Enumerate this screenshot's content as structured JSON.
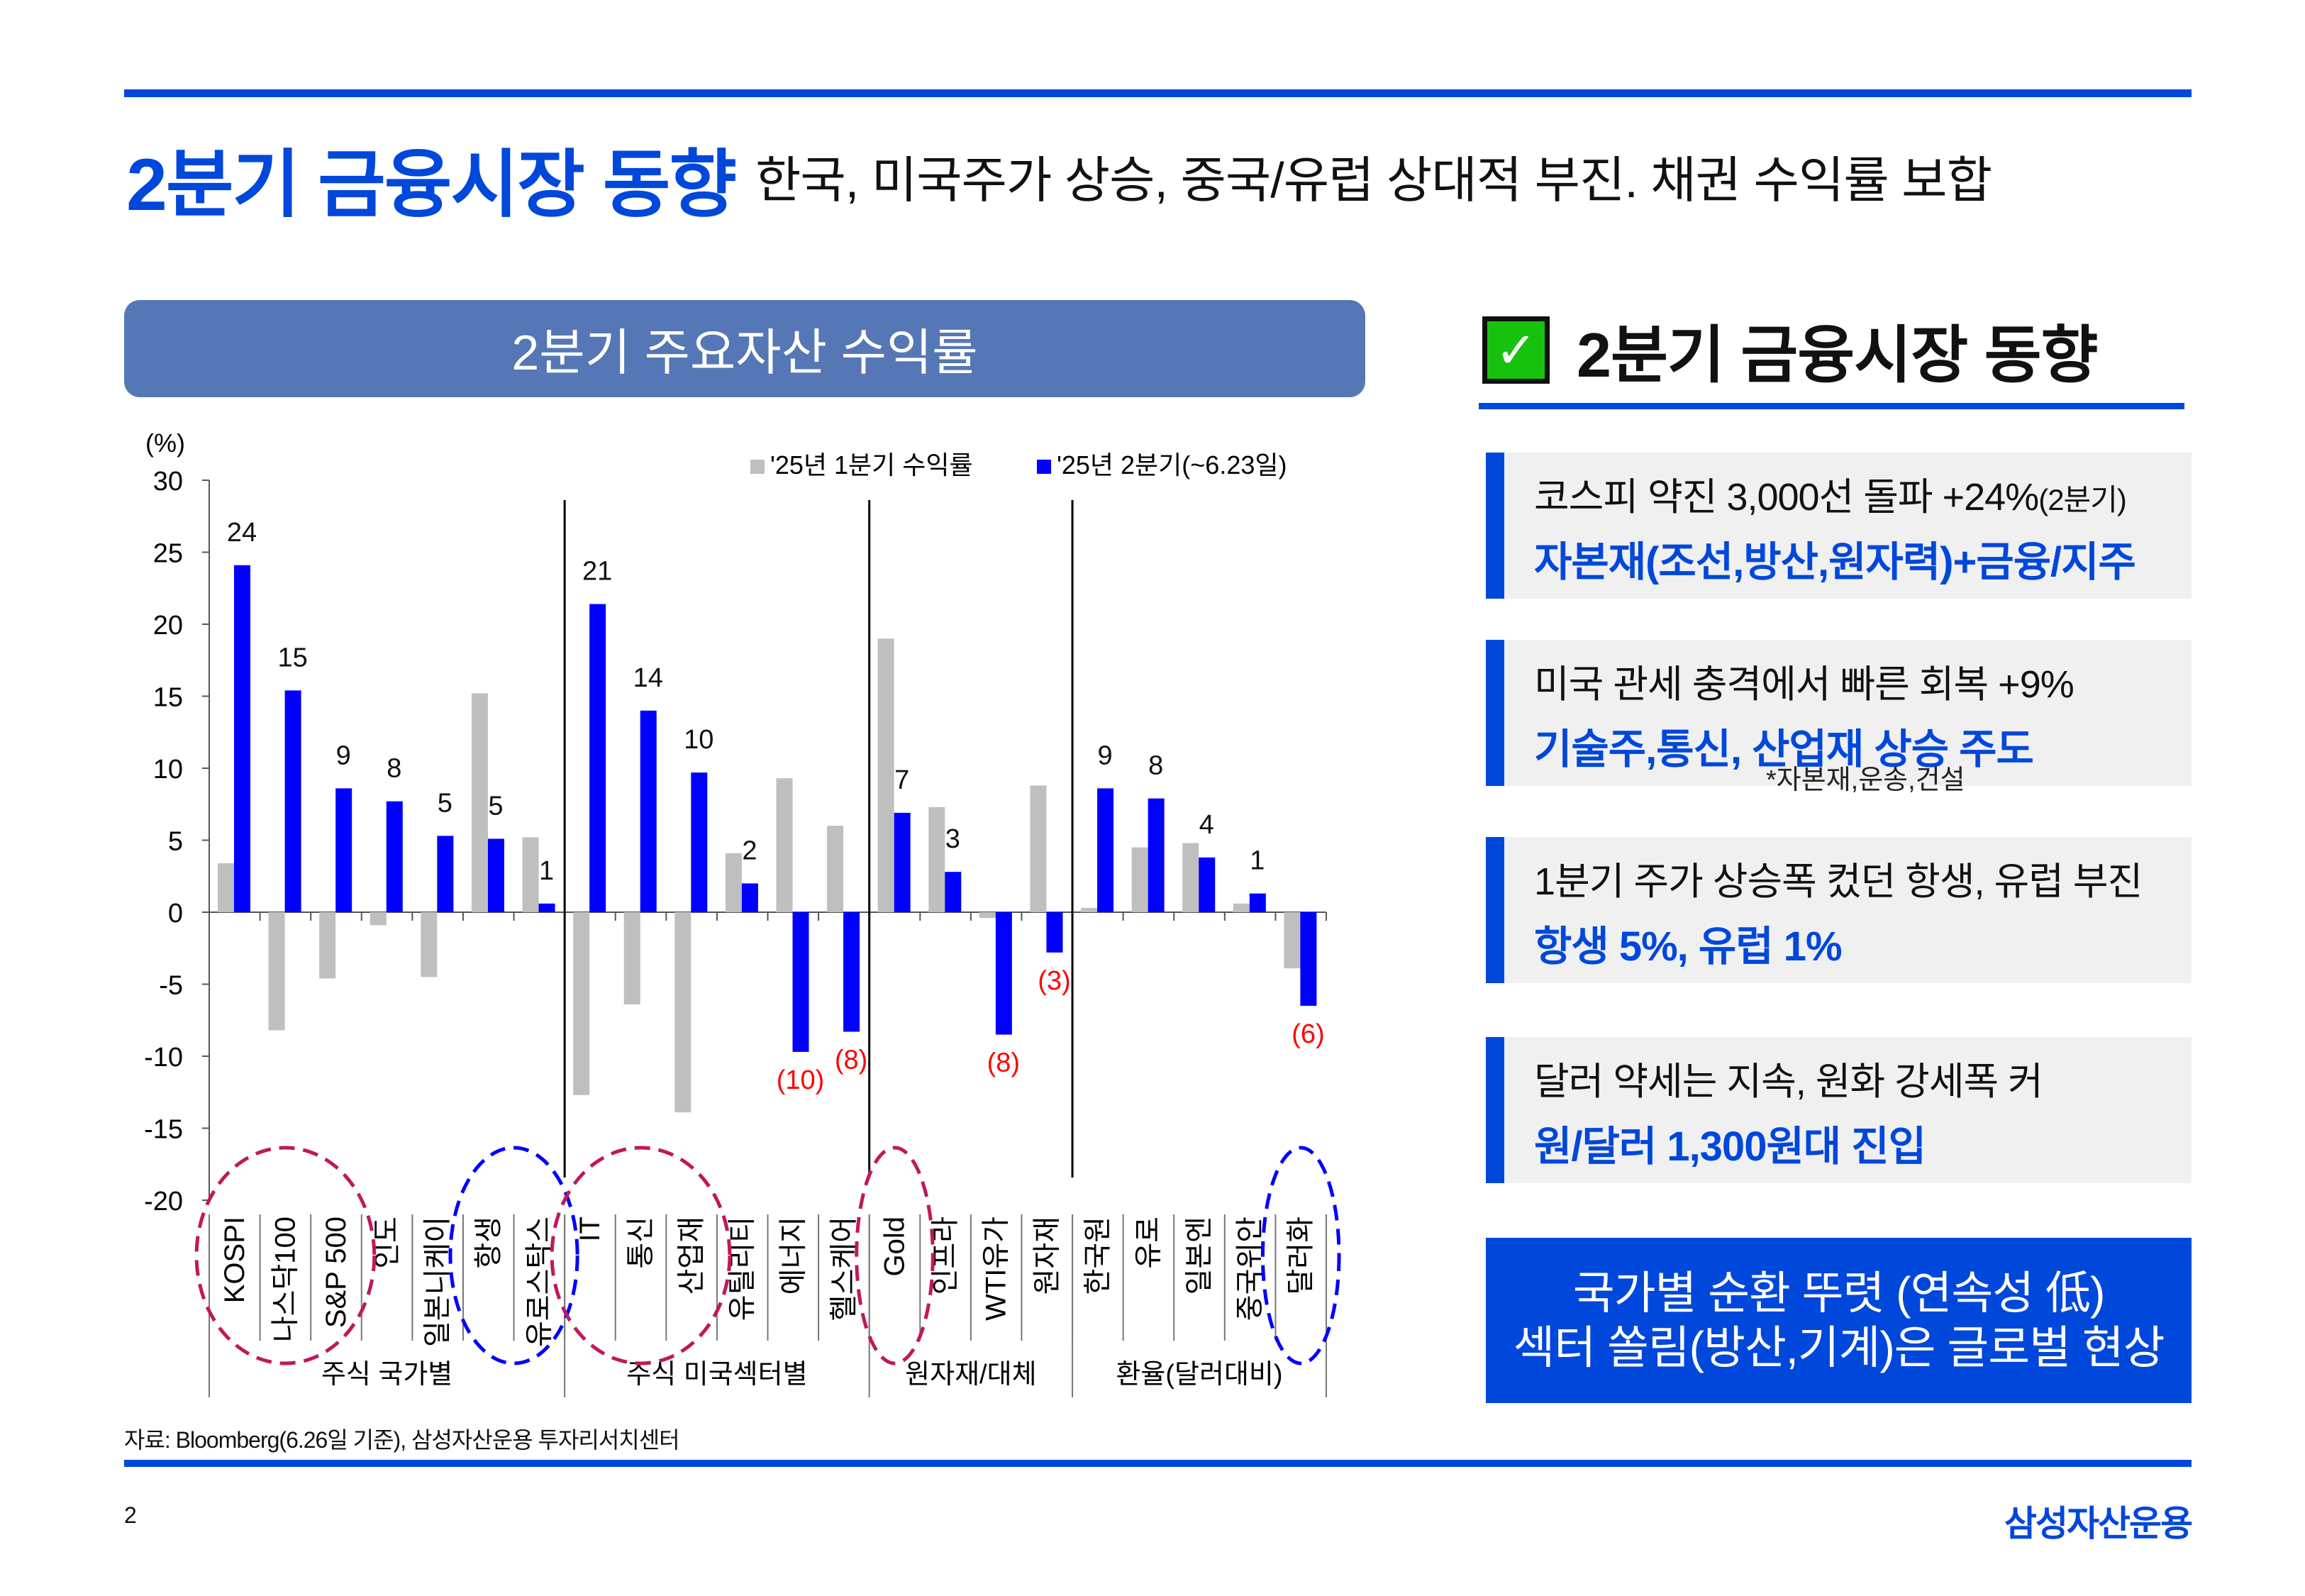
{
  "header": {
    "title": "2분기 금융시장 동향",
    "subtitle": "한국, 미국주가 상승, 중국/유럽 상대적 부진. 채권 수익률 보합"
  },
  "chart_panel": {
    "title": "2분기 주요자산 수익률"
  },
  "chart_data": {
    "type": "bar",
    "title": "2분기 주요자산 수익률",
    "ylabel": "(%)",
    "ylim": [
      -20,
      30
    ],
    "yticks": [
      30,
      25,
      20,
      15,
      10,
      5,
      0,
      -5,
      -10,
      -15,
      -20
    ],
    "ytick_labels": [
      "30",
      "25",
      "20",
      "15",
      "10",
      "5",
      "0",
      "-5",
      "-10",
      "-15",
      "-20"
    ],
    "legend_position": "top-right",
    "categories": [
      "KOSPI",
      "나스닥100",
      "S&P 500",
      "인도",
      "일본니케이",
      "항생",
      "유로스탁스",
      "IT",
      "통신",
      "산업재",
      "유틸리티",
      "에너지",
      "헬스케어",
      "Gold",
      "인프라",
      "WTI유가",
      "원자재",
      "한국원",
      "유로",
      "일본엔",
      "중국위안",
      "달러화"
    ],
    "groups": [
      {
        "label": "주식 국가별",
        "count": 7
      },
      {
        "label": "주식 미국섹터별",
        "count": 6
      },
      {
        "label": "원자재/대체",
        "count": 4
      },
      {
        "label": "환율(달러대비)",
        "count": 5
      }
    ],
    "series": [
      {
        "name": "'25년 1분기 수익률",
        "color": "#BFBFBF",
        "values": [
          3.4,
          -8.2,
          -4.6,
          -0.9,
          -4.5,
          15.2,
          5.2,
          -12.7,
          -6.4,
          -13.9,
          4.1,
          9.3,
          6.0,
          19.0,
          7.3,
          -0.4,
          8.8,
          0.3,
          4.5,
          4.8,
          0.6,
          -3.9
        ]
      },
      {
        "name": "'25년 2분기(~6.23일)",
        "color": "#0000FF",
        "values": [
          24.1,
          15.4,
          8.6,
          7.7,
          5.3,
          5.1,
          0.6,
          21.4,
          14.0,
          9.7,
          2.0,
          -9.7,
          -8.3,
          6.9,
          2.8,
          -8.5,
          -2.8,
          8.6,
          7.9,
          3.8,
          1.3,
          -6.5
        ],
        "data_labels": [
          "24",
          "15",
          "9",
          "8",
          "5",
          "5",
          "1",
          "21",
          "14",
          "10",
          "2",
          "(10)",
          "(8)",
          "7",
          "3",
          "(8)",
          "(3)",
          "9",
          "8",
          "4",
          "1",
          "(6)"
        ]
      }
    ],
    "negative_label_color": "#FF0000",
    "highlights": [
      {
        "categories": [
          "KOSPI",
          "나스닥100",
          "S&P 500"
        ],
        "color": "#C0185C"
      },
      {
        "categories": [
          "항생",
          "유로스탁스"
        ],
        "color": "#0000FF"
      },
      {
        "categories": [
          "IT",
          "통신",
          "산업재"
        ],
        "color": "#C0185C"
      },
      {
        "categories": [
          "Gold"
        ],
        "color": "#C0185C"
      },
      {
        "categories": [
          "달러화"
        ],
        "color": "#0000FF"
      }
    ]
  },
  "right_panel": {
    "title": "2분기 금융시장 동향",
    "items": [
      {
        "line1": "코스피 약진 3,000선 돌파 +24%",
        "line1_suffix": "(2분기)",
        "line2": "자본재(조선,방산,원자력)+금융/지주"
      },
      {
        "line1": "미국 관세 충격에서 빠른 회복 +9%",
        "line2": "기술주,통신, 산업재 상승 주도",
        "note": "*자본재,운송,건설"
      },
      {
        "line1": "1분기 주가 상승폭 컸던 항생, 유럽 부진",
        "line2": "항생 5%, 유럽 1%"
      },
      {
        "line1": "달러 약세는 지속, 원화 강세폭 커",
        "line2": "원/달러 1,300원대 진입"
      }
    ],
    "summary": {
      "line1": "국가별 순환 뚜렷 (연속성 低)",
      "line2": "섹터 쏠림(방산,기계)은 글로벌 현상"
    }
  },
  "footer": {
    "source": "자료: Bloomberg(6.26일 기준), 삼성자산운용 투자리서치센터",
    "page": "2",
    "logo": "삼성자산운용"
  },
  "colors": {
    "brand": "#0047DB",
    "pill": "#5577B5",
    "check": "#17C20E",
    "box_bg": "#F0F0F0"
  }
}
